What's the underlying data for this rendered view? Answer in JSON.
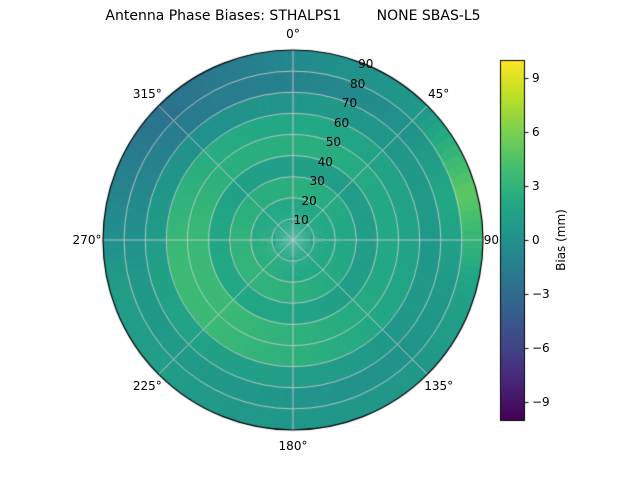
{
  "chart_data": {
    "type": "heatmap",
    "projection": "polar",
    "title": "Antenna Phase Biases: STHALPS1        NONE SBAS-L5",
    "angular_ticks": [
      {
        "angle_deg": 0,
        "label": "0°"
      },
      {
        "angle_deg": 45,
        "label": "45°"
      },
      {
        "angle_deg": 90,
        "label": "90"
      },
      {
        "angle_deg": 135,
        "label": "135°"
      },
      {
        "angle_deg": 180,
        "label": "180°"
      },
      {
        "angle_deg": 225,
        "label": "225°"
      },
      {
        "angle_deg": 270,
        "label": "270°"
      },
      {
        "angle_deg": 315,
        "label": "315°"
      }
    ],
    "radial_ticks": [
      10,
      20,
      30,
      40,
      50,
      60,
      70,
      80,
      90
    ],
    "radial_label_angle_deg": 22.5,
    "radial_range": [
      0,
      90
    ],
    "grid": true,
    "azimuth_bin_centers_deg": [
      15,
      45,
      75,
      105,
      135,
      165,
      195,
      225,
      255,
      285,
      315,
      345
    ],
    "ring_edges": [
      0,
      10,
      20,
      30,
      40,
      50,
      60,
      70,
      80,
      90
    ],
    "values_unit": "mm",
    "values": [
      [
        1.8,
        1.8,
        1.8,
        1.8,
        1.8,
        1.8,
        1.8,
        1.8,
        1.8,
        1.8,
        1.8,
        1.8
      ],
      [
        2.0,
        2.0,
        2.0,
        2.0,
        2.0,
        2.0,
        2.2,
        2.5,
        2.5,
        2.2,
        2.0,
        2.0
      ],
      [
        2.5,
        2.3,
        2.0,
        2.0,
        2.2,
        2.5,
        2.8,
        3.0,
        3.0,
        2.8,
        2.5,
        2.5
      ],
      [
        1.2,
        1.0,
        1.0,
        1.0,
        1.2,
        1.5,
        1.8,
        2.0,
        2.0,
        1.8,
        1.3,
        1.2
      ],
      [
        2.5,
        2.2,
        2.0,
        2.0,
        2.2,
        2.6,
        3.0,
        3.5,
        3.5,
        3.2,
        2.6,
        2.5
      ],
      [
        2.0,
        1.6,
        1.5,
        1.6,
        2.0,
        2.5,
        3.0,
        3.5,
        3.6,
        3.0,
        2.4,
        2.0
      ],
      [
        0.6,
        0.5,
        0.8,
        0.6,
        0.6,
        1.0,
        1.2,
        1.5,
        1.4,
        0.6,
        0.0,
        0.2
      ],
      [
        -0.8,
        0.0,
        2.0,
        0.8,
        0.2,
        0.2,
        0.5,
        0.8,
        0.6,
        -0.6,
        -1.8,
        -1.5
      ],
      [
        0.0,
        0.6,
        5.0,
        1.5,
        0.6,
        0.5,
        0.6,
        1.0,
        1.0,
        -1.0,
        -2.5,
        -1.5
      ]
    ],
    "colorbar": {
      "label": "Bias (mm)",
      "tick_values": [
        9,
        6,
        3,
        0,
        -3,
        -6,
        -9
      ],
      "tick_labels": [
        "9",
        "6",
        "3",
        "0",
        "−3",
        "−6",
        "−9"
      ],
      "vmin": -10,
      "vmax": 10,
      "colormap": "viridis",
      "stops": [
        [
          0.0,
          "#440154"
        ],
        [
          0.1,
          "#482475"
        ],
        [
          0.2,
          "#414487"
        ],
        [
          0.3,
          "#355f8d"
        ],
        [
          0.4,
          "#2a788e"
        ],
        [
          0.5,
          "#21918c"
        ],
        [
          0.6,
          "#22a884"
        ],
        [
          0.7,
          "#44bf70"
        ],
        [
          0.8,
          "#7ad151"
        ],
        [
          0.9,
          "#bddf26"
        ],
        [
          1.0,
          "#fde725"
        ]
      ]
    }
  }
}
